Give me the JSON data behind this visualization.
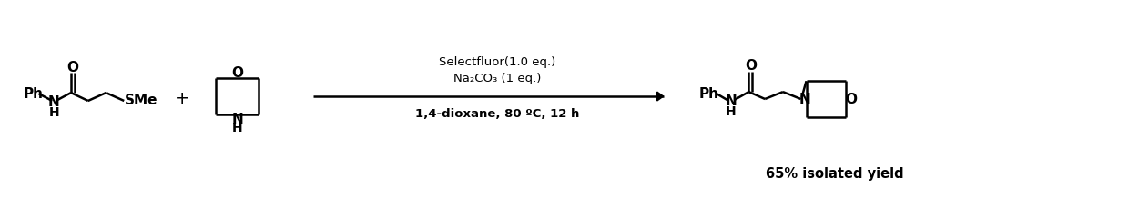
{
  "background_color": "#ffffff",
  "line_color": "#000000",
  "conditions_line1": "Selectfluor(1.0 eq.)",
  "conditions_line2": "Na₂CO₃ (1 eq.)",
  "conditions_line3": "1,4-dioxane, 80 ºC, 12 h",
  "yield_text": "65% isolated yield",
  "fig_width": 12.4,
  "fig_height": 2.18,
  "dpi": 100,
  "lw": 1.8
}
